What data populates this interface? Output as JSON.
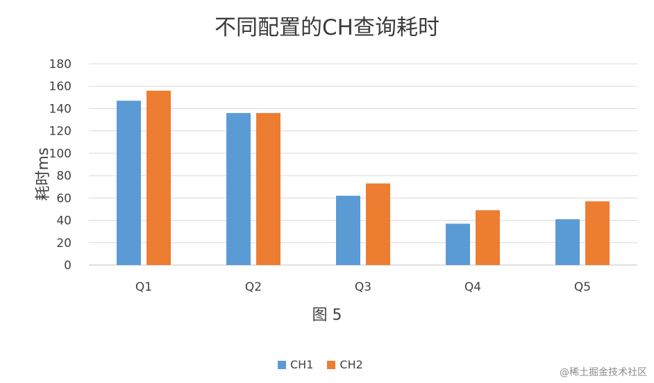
{
  "chart_data": {
    "type": "bar",
    "title": "不同配置的CH查询耗时",
    "xlabel": "图 5",
    "ylabel": "耗时ms",
    "categories": [
      "Q1",
      "Q2",
      "Q3",
      "Q4",
      "Q5"
    ],
    "series": [
      {
        "name": "CH1",
        "color": "#5b9bd5",
        "values": [
          147,
          136,
          62,
          37,
          41
        ]
      },
      {
        "name": "CH2",
        "color": "#ed7d31",
        "values": [
          156,
          136,
          73,
          49,
          57
        ]
      }
    ],
    "ylim": [
      0,
      180
    ],
    "yticks": [
      "0",
      "20",
      "40",
      "60",
      "80",
      "100",
      "120",
      "140",
      "160",
      "180"
    ],
    "grid": true,
    "legend_position": "bottom"
  },
  "watermark": "@稀土掘金技术社区"
}
